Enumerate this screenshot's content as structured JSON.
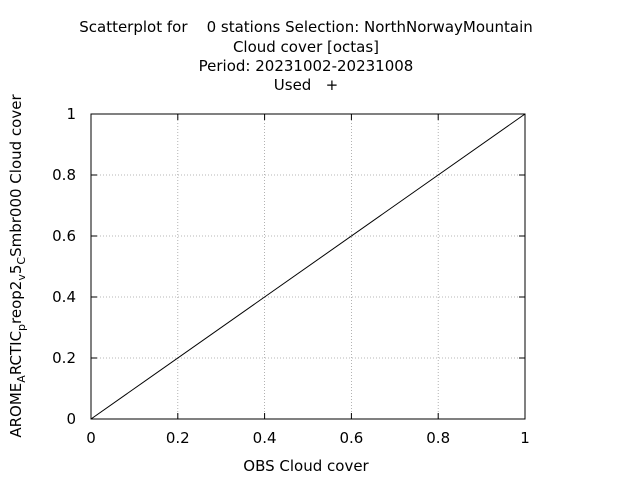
{
  "chart_data": {
    "type": "scatter",
    "title_lines": [
      "Scatterplot for    0 stations Selection: NorthNorwayMountain",
      "Cloud cover [octas]",
      "Period: 20231002-20231008",
      "Used   +"
    ],
    "xlabel": "OBS Cloud cover",
    "ylabel": {
      "parts": [
        {
          "text": "AROME",
          "sub": false
        },
        {
          "text": "A",
          "sub": true
        },
        {
          "text": "RCTIC",
          "sub": false
        },
        {
          "text": "p",
          "sub": true
        },
        {
          "text": "reop2",
          "sub": false
        },
        {
          "text": "v",
          "sub": true
        },
        {
          "text": "5",
          "sub": false
        },
        {
          "text": "C",
          "sub": true
        },
        {
          "text": "Smbr000 Cloud cover",
          "sub": false
        }
      ]
    },
    "xlim": [
      0,
      1
    ],
    "ylim": [
      0,
      1
    ],
    "xticks": [
      "0",
      "0.2",
      "0.4",
      "0.6",
      "0.8",
      "1"
    ],
    "yticks": [
      "0",
      "0.2",
      "0.4",
      "0.6",
      "0.8",
      "1"
    ],
    "grid": true,
    "reference_line": {
      "x": [
        0,
        1
      ],
      "y": [
        0,
        1
      ]
    },
    "series": []
  }
}
